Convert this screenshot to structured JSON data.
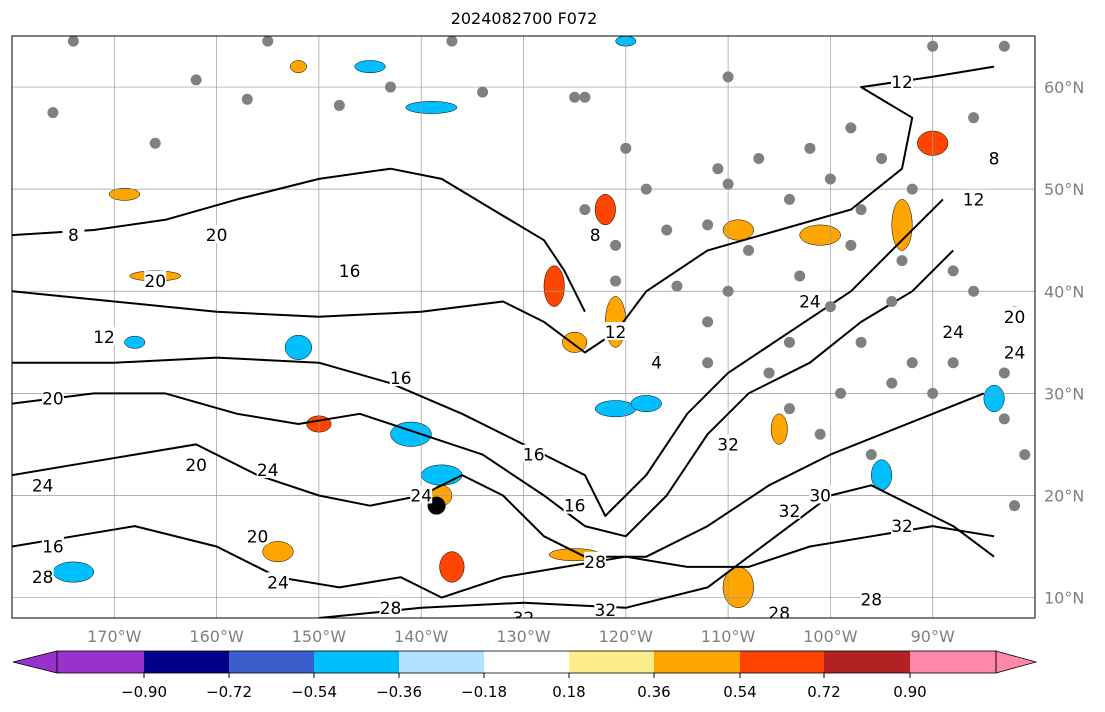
{
  "chart_data": {
    "type": "heatmap",
    "title": "2024082700 F072",
    "lon_range": [
      -180,
      -80
    ],
    "lat_range": [
      8,
      65
    ],
    "grid": true,
    "x_ticks": [
      {
        "lon": -170,
        "label": "170°W"
      },
      {
        "lon": -160,
        "label": "160°W"
      },
      {
        "lon": -150,
        "label": "150°W"
      },
      {
        "lon": -140,
        "label": "140°W"
      },
      {
        "lon": -130,
        "label": "130°W"
      },
      {
        "lon": -120,
        "label": "120°W"
      },
      {
        "lon": -110,
        "label": "110°W"
      },
      {
        "lon": -100,
        "label": "100°W"
      },
      {
        "lon": -90,
        "label": "90°W"
      }
    ],
    "y_ticks": [
      {
        "lat": 60,
        "label": "60°N"
      },
      {
        "lat": 50,
        "label": "50°N"
      },
      {
        "lat": 40,
        "label": "40°N"
      },
      {
        "lat": 30,
        "label": "30°N"
      },
      {
        "lat": 20,
        "label": "20°N"
      },
      {
        "lat": 10,
        "label": "10°N"
      }
    ],
    "colorbar": {
      "colors": [
        "#9932cc",
        "#00008b",
        "#3a5fcd",
        "#00bfff",
        "#b0e2ff",
        "#ffffff",
        "#ffec8b",
        "#ffa500",
        "#ff4500",
        "#b22222",
        "#ff88aa"
      ],
      "ticks": [
        "−0.90",
        "−0.72",
        "−0.54",
        "−0.36",
        "−0.18",
        "0.18",
        "0.36",
        "0.54",
        "0.72",
        "0.90"
      ],
      "extend": "both"
    },
    "contours": [
      {
        "value": 8,
        "points": [
          [
            -180,
            45.5
          ],
          [
            -172,
            46
          ],
          [
            -165,
            47
          ],
          [
            -158,
            49
          ],
          [
            -150,
            51
          ],
          [
            -143,
            52
          ],
          [
            -138,
            51
          ],
          [
            -133,
            48
          ],
          [
            -128,
            45
          ],
          [
            -126,
            42
          ],
          [
            -124,
            38
          ]
        ]
      },
      {
        "value": 12,
        "points": [
          [
            -180,
            40
          ],
          [
            -170,
            39
          ],
          [
            -160,
            38
          ],
          [
            -150,
            37.5
          ],
          [
            -140,
            38
          ],
          [
            -132,
            39
          ],
          [
            -128,
            37
          ],
          [
            -124,
            34
          ],
          [
            -121,
            36
          ],
          [
            -118,
            40
          ],
          [
            -112,
            44
          ],
          [
            -105,
            46
          ],
          [
            -98,
            48
          ],
          [
            -93,
            52
          ],
          [
            -92,
            57
          ],
          [
            -97,
            60
          ],
          [
            -90,
            61
          ],
          [
            -84,
            62
          ]
        ]
      },
      {
        "value": 16,
        "points": [
          [
            -180,
            33
          ],
          [
            -170,
            33
          ],
          [
            -160,
            33.5
          ],
          [
            -150,
            33
          ],
          [
            -143,
            31
          ],
          [
            -136,
            28
          ],
          [
            -130,
            25
          ],
          [
            -124,
            22
          ],
          [
            -122,
            18
          ],
          [
            -118,
            22
          ],
          [
            -114,
            28
          ],
          [
            -110,
            32
          ],
          [
            -104,
            36
          ],
          [
            -98,
            40
          ],
          [
            -93,
            45
          ],
          [
            -89,
            49
          ]
        ]
      },
      {
        "value": 20,
        "points": [
          [
            -180,
            29
          ],
          [
            -172,
            30
          ],
          [
            -165,
            30
          ],
          [
            -158,
            28
          ],
          [
            -152,
            27
          ],
          [
            -146,
            28
          ],
          [
            -140,
            26
          ],
          [
            -134,
            24
          ],
          [
            -128,
            20
          ],
          [
            -124,
            17
          ],
          [
            -120,
            16
          ],
          [
            -116,
            20
          ],
          [
            -112,
            26
          ],
          [
            -108,
            30
          ],
          [
            -102,
            33
          ],
          [
            -97,
            37
          ],
          [
            -92,
            40
          ],
          [
            -88,
            44
          ]
        ]
      },
      {
        "value": 24,
        "points": [
          [
            -180,
            22
          ],
          [
            -174,
            23
          ],
          [
            -168,
            24
          ],
          [
            -162,
            25
          ],
          [
            -156,
            22
          ],
          [
            -150,
            20
          ],
          [
            -145,
            19
          ],
          [
            -140,
            20
          ],
          [
            -136,
            22
          ],
          [
            -132,
            20
          ],
          [
            -128,
            16
          ],
          [
            -124,
            14
          ],
          [
            -118,
            14
          ],
          [
            -112,
            17
          ],
          [
            -106,
            21
          ],
          [
            -100,
            24
          ],
          [
            -95,
            26
          ],
          [
            -90,
            28
          ],
          [
            -85,
            30
          ]
        ]
      },
      {
        "value": 28,
        "points": [
          [
            -180,
            15
          ],
          [
            -174,
            16
          ],
          [
            -168,
            17
          ],
          [
            -160,
            15
          ],
          [
            -154,
            12
          ],
          [
            -148,
            11
          ],
          [
            -142,
            12
          ],
          [
            -138,
            10
          ],
          [
            -132,
            12
          ],
          [
            -126,
            13
          ],
          [
            -120,
            14
          ],
          [
            -114,
            13
          ],
          [
            -108,
            13
          ],
          [
            -102,
            15
          ],
          [
            -96,
            16
          ],
          [
            -90,
            17
          ],
          [
            -84,
            16
          ]
        ]
      },
      {
        "value": 32,
        "points": [
          [
            -150,
            8
          ],
          [
            -140,
            9
          ],
          [
            -130,
            9.5
          ],
          [
            -120,
            9
          ],
          [
            -112,
            11
          ],
          [
            -104,
            17
          ],
          [
            -100,
            20
          ],
          [
            -96,
            21
          ],
          [
            -92,
            19
          ],
          [
            -88,
            17
          ],
          [
            -84,
            14
          ]
        ]
      }
    ],
    "contour_labels": [
      {
        "lon": -174,
        "lat": 45.5,
        "text": "8"
      },
      {
        "lon": -160,
        "lat": 45.5,
        "text": "20"
      },
      {
        "lon": -166,
        "lat": 41,
        "text": "20"
      },
      {
        "lon": -147,
        "lat": 42,
        "text": "16"
      },
      {
        "lon": -171,
        "lat": 35.5,
        "text": "12"
      },
      {
        "lon": -142,
        "lat": 31.5,
        "text": "16"
      },
      {
        "lon": -176,
        "lat": 29.5,
        "text": "20"
      },
      {
        "lon": -177,
        "lat": 21,
        "text": "24"
      },
      {
        "lon": -155,
        "lat": 22.5,
        "text": "24"
      },
      {
        "lon": -162,
        "lat": 23,
        "text": "20"
      },
      {
        "lon": -140,
        "lat": 20,
        "text": "24"
      },
      {
        "lon": -129,
        "lat": 24,
        "text": "16"
      },
      {
        "lon": -125,
        "lat": 19,
        "text": "16"
      },
      {
        "lon": -176,
        "lat": 15,
        "text": "16"
      },
      {
        "lon": -177,
        "lat": 12,
        "text": "28"
      },
      {
        "lon": -156,
        "lat": 16,
        "text": "20"
      },
      {
        "lon": -154,
        "lat": 11.5,
        "text": "24"
      },
      {
        "lon": -143,
        "lat": 9,
        "text": "28"
      },
      {
        "lon": -130,
        "lat": 8,
        "text": "32"
      },
      {
        "lon": -122,
        "lat": 8.8,
        "text": "32"
      },
      {
        "lon": -123,
        "lat": 13.5,
        "text": "28"
      },
      {
        "lon": -105,
        "lat": 8.5,
        "text": "28"
      },
      {
        "lon": -96,
        "lat": 9.8,
        "text": "28"
      },
      {
        "lon": -104,
        "lat": 18.5,
        "text": "32"
      },
      {
        "lon": -101,
        "lat": 20,
        "text": "30"
      },
      {
        "lon": -93,
        "lat": 17,
        "text": "32"
      },
      {
        "lon": -110,
        "lat": 25,
        "text": "32"
      },
      {
        "lon": -121,
        "lat": 36,
        "text": "12"
      },
      {
        "lon": -123,
        "lat": 45.5,
        "text": "8"
      },
      {
        "lon": -117,
        "lat": 33,
        "text": "4"
      },
      {
        "lon": -102,
        "lat": 39,
        "text": "24"
      },
      {
        "lon": -88,
        "lat": 36,
        "text": "24"
      },
      {
        "lon": -82,
        "lat": 37.5,
        "text": "20"
      },
      {
        "lon": -82,
        "lat": 34,
        "text": "24"
      },
      {
        "lon": -93,
        "lat": 60.5,
        "text": "12"
      },
      {
        "lon": -86,
        "lat": 49,
        "text": "12"
      },
      {
        "lon": -84,
        "lat": 53,
        "text": "8"
      }
    ],
    "shaded": [
      {
        "lon": -169,
        "lat": 49.5,
        "rx": 1.5,
        "ry": 0.6,
        "v": 0.4
      },
      {
        "lon": -166,
        "lat": 41.5,
        "rx": 2.5,
        "ry": 0.5,
        "v": 0.4
      },
      {
        "lon": -150,
        "lat": 27,
        "rx": 1.2,
        "ry": 0.8,
        "v": 0.6
      },
      {
        "lon": -168,
        "lat": 35,
        "rx": 1,
        "ry": 0.6,
        "v": -0.4
      },
      {
        "lon": -152,
        "lat": 34.5,
        "rx": 1.3,
        "ry": 1.2,
        "v": -0.5
      },
      {
        "lon": -141,
        "lat": 26,
        "rx": 2,
        "ry": 1.2,
        "v": -0.4
      },
      {
        "lon": -138,
        "lat": 22,
        "rx": 2,
        "ry": 1,
        "v": -0.4
      },
      {
        "lon": -138,
        "lat": 20,
        "rx": 1,
        "ry": 1,
        "v": 0.4
      },
      {
        "lon": -137,
        "lat": 13,
        "rx": 1.2,
        "ry": 1.5,
        "v": 0.6
      },
      {
        "lon": -127,
        "lat": 40.5,
        "rx": 1,
        "ry": 2,
        "v": 0.6
      },
      {
        "lon": -121,
        "lat": 37,
        "rx": 1,
        "ry": 2.5,
        "v": 0.4
      },
      {
        "lon": -125,
        "lat": 35,
        "rx": 1.2,
        "ry": 1,
        "v": 0.4
      },
      {
        "lon": -121,
        "lat": 28.5,
        "rx": 2,
        "ry": 0.8,
        "v": -0.4
      },
      {
        "lon": -118,
        "lat": 29,
        "rx": 1.5,
        "ry": 0.8,
        "v": -0.4
      },
      {
        "lon": -174,
        "lat": 12.5,
        "rx": 2,
        "ry": 1,
        "v": -0.4
      },
      {
        "lon": -154,
        "lat": 14.5,
        "rx": 1.5,
        "ry": 1,
        "v": 0.4
      },
      {
        "lon": -125,
        "lat": 14.2,
        "rx": 2.5,
        "ry": 0.6,
        "v": 0.4
      },
      {
        "lon": -109,
        "lat": 11,
        "rx": 1.5,
        "ry": 2,
        "v": 0.5
      },
      {
        "lon": -109,
        "lat": 46,
        "rx": 1.5,
        "ry": 1,
        "v": 0.4
      },
      {
        "lon": -101,
        "lat": 45.5,
        "rx": 2,
        "ry": 1,
        "v": 0.4
      },
      {
        "lon": -90,
        "lat": 54.5,
        "rx": 1.5,
        "ry": 1.2,
        "v": 0.6
      },
      {
        "lon": -93,
        "lat": 46.5,
        "rx": 1,
        "ry": 2.5,
        "v": 0.4
      },
      {
        "lon": -122,
        "lat": 48,
        "rx": 1,
        "ry": 1.5,
        "v": 0.6
      },
      {
        "lon": -145,
        "lat": 62,
        "rx": 1.5,
        "ry": 0.6,
        "v": -0.4
      },
      {
        "lon": -139,
        "lat": 58,
        "rx": 2.5,
        "ry": 0.6,
        "v": -0.4
      },
      {
        "lon": -84,
        "lat": 29.5,
        "rx": 1,
        "ry": 1.3,
        "v": -0.4
      },
      {
        "lon": -95,
        "lat": 22,
        "rx": 1,
        "ry": 1.5,
        "v": -0.4
      },
      {
        "lon": -105,
        "lat": 26.5,
        "rx": 0.8,
        "ry": 1.5,
        "v": 0.5
      },
      {
        "lon": -152,
        "lat": 62,
        "rx": 0.8,
        "ry": 0.6,
        "v": 0.4
      },
      {
        "lon": -120,
        "lat": 64.5,
        "rx": 1,
        "ry": 0.5,
        "v": -0.4
      }
    ],
    "stations": [
      [
        -174,
        64.5
      ],
      [
        -155,
        64.5
      ],
      [
        -137,
        64.5
      ],
      [
        -162,
        60.7
      ],
      [
        -157,
        58.8
      ],
      [
        -148,
        58.2
      ],
      [
        -143,
        60
      ],
      [
        -134,
        59.5
      ],
      [
        -125,
        59
      ],
      [
        -110,
        61
      ],
      [
        -102,
        54
      ],
      [
        -95,
        53
      ],
      [
        -120,
        54
      ],
      [
        -111,
        52
      ],
      [
        -107,
        53
      ],
      [
        -100,
        51
      ],
      [
        -92,
        50
      ],
      [
        -110,
        50.5
      ],
      [
        -104,
        49
      ],
      [
        -97,
        48
      ],
      [
        -118,
        50
      ],
      [
        -124,
        48
      ],
      [
        -121,
        44.5
      ],
      [
        -116,
        46
      ],
      [
        -112,
        46.5
      ],
      [
        -108,
        44
      ],
      [
        -103,
        41.5
      ],
      [
        -98,
        44.5
      ],
      [
        -93,
        43
      ],
      [
        -88,
        42
      ],
      [
        -121,
        41
      ],
      [
        -115,
        40.5
      ],
      [
        -110,
        40
      ],
      [
        -100,
        38.5
      ],
      [
        -94,
        39
      ],
      [
        -86,
        40
      ],
      [
        -82,
        38
      ],
      [
        -112,
        37
      ],
      [
        -104,
        35
      ],
      [
        -97,
        35
      ],
      [
        -92,
        33
      ],
      [
        -88,
        33
      ],
      [
        -83,
        32
      ],
      [
        -117,
        33.5
      ],
      [
        -112,
        33
      ],
      [
        -106,
        32
      ],
      [
        -99,
        30
      ],
      [
        -94,
        31
      ],
      [
        -90,
        30
      ],
      [
        -83,
        27.5
      ],
      [
        -104,
        28.5
      ],
      [
        -101,
        26
      ],
      [
        -96,
        24
      ],
      [
        -81,
        24
      ],
      [
        -82,
        19
      ],
      [
        -90,
        64
      ],
      [
        -83,
        64
      ],
      [
        -86,
        57
      ],
      [
        -98,
        56
      ],
      [
        -176,
        57.5
      ],
      [
        -166,
        54.5
      ],
      [
        -124,
        59
      ]
    ],
    "marker": {
      "lon": -138.5,
      "lat": 19
    }
  }
}
